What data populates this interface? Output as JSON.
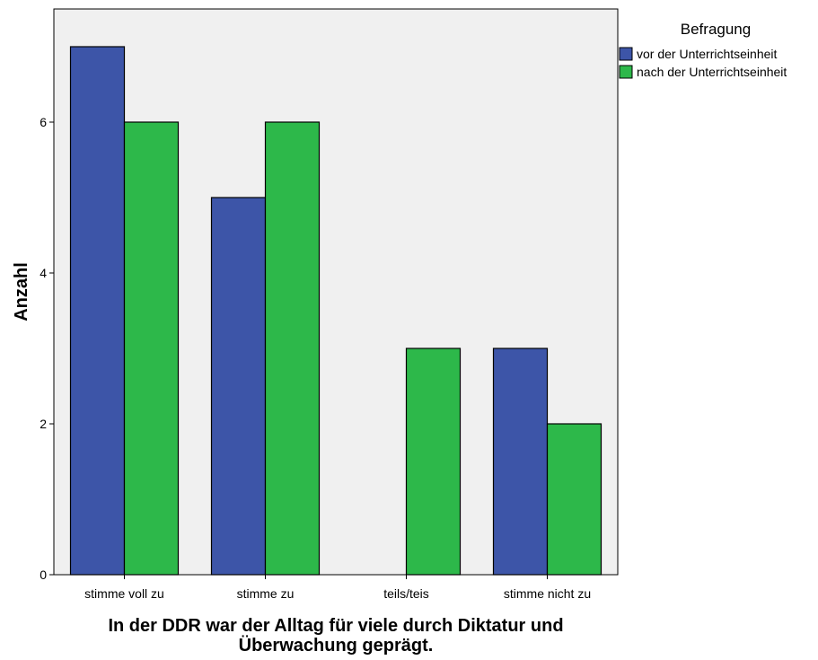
{
  "chart_data": {
    "type": "bar",
    "categories": [
      "stimme voll zu",
      "stimme zu",
      "teils/teis",
      "stimme nicht zu"
    ],
    "series": [
      {
        "name": "vor der Unterrichtseinheit",
        "values": [
          7,
          5,
          0,
          3
        ],
        "color": "#3d55a8"
      },
      {
        "name": "nach der Unterrichtseinheit",
        "values": [
          6,
          6,
          3,
          2
        ],
        "color": "#2db84a"
      }
    ],
    "xlabel_lines": [
      "In der DDR war der Alltag für viele durch Diktatur und",
      "Überwachung geprägt."
    ],
    "ylabel": "Anzahl",
    "ylim": [
      0,
      7.5
    ],
    "yticks": [
      0,
      2,
      4,
      6
    ],
    "legend_title": "Befragung",
    "legend_position": "top-right",
    "plot_background": "#f0f0f0",
    "grid": false
  }
}
